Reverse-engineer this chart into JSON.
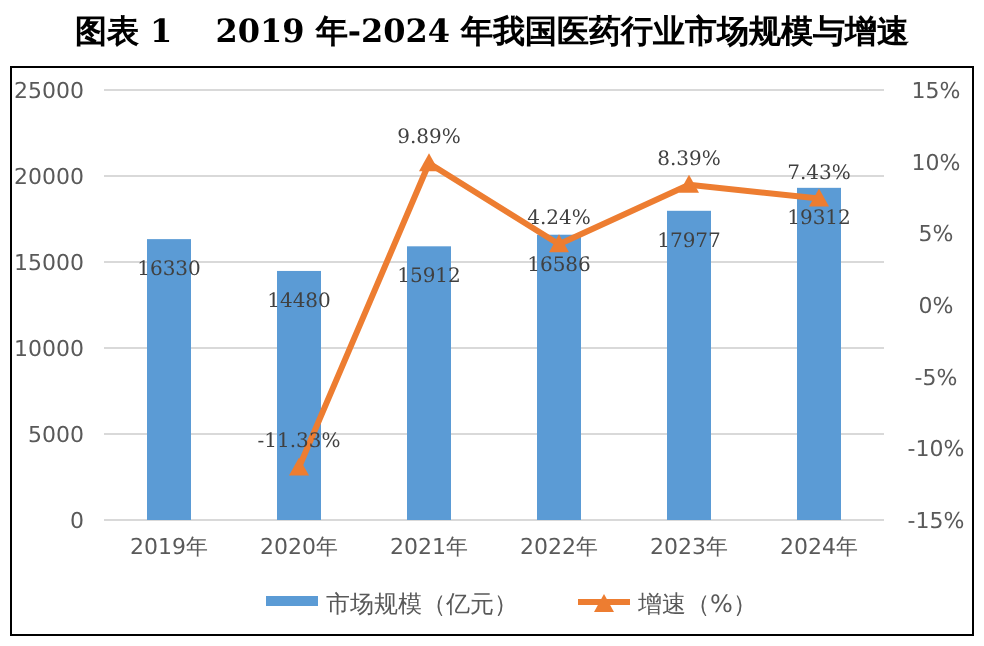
{
  "chart_data": {
    "type": "bar",
    "title": "图表 1　 2019 年-2024 年我国医药行业市场规模与增速",
    "categories": [
      "2019年",
      "2020年",
      "2021年",
      "2022年",
      "2023年",
      "2024年"
    ],
    "series": [
      {
        "name": "市场规模（亿元）",
        "color": "#5b9bd5",
        "values": [
          16330,
          14480,
          15912,
          16586,
          17977,
          19312
        ],
        "value_labels": [
          "16330",
          "14480",
          "15912",
          "16586",
          "17977",
          "19312"
        ]
      },
      {
        "name": "增速（%）",
        "type": "line",
        "axis": "y2",
        "color": "#ed7d31",
        "marker": "triangle",
        "values": [
          null,
          -11.33,
          9.89,
          4.24,
          8.39,
          7.43
        ],
        "value_labels": [
          null,
          "-11.33%",
          "9.89%",
          "4.24%",
          "8.39%",
          "7.43%"
        ]
      }
    ],
    "ylim": [
      0,
      25000
    ],
    "yticks": [
      0,
      5000,
      10000,
      15000,
      20000,
      25000
    ],
    "y2lim": [
      -15,
      15
    ],
    "y2ticks": [
      {
        "value": -15,
        "label": "-15%"
      },
      {
        "value": -10,
        "label": "-10%"
      },
      {
        "value": -5,
        "label": "-5%"
      },
      {
        "value": 0,
        "label": "0%"
      },
      {
        "value": 5,
        "label": "5%"
      },
      {
        "value": 10,
        "label": "10%"
      },
      {
        "value": 15,
        "label": "15%"
      }
    ],
    "grid": "y",
    "legend": "bottom"
  }
}
